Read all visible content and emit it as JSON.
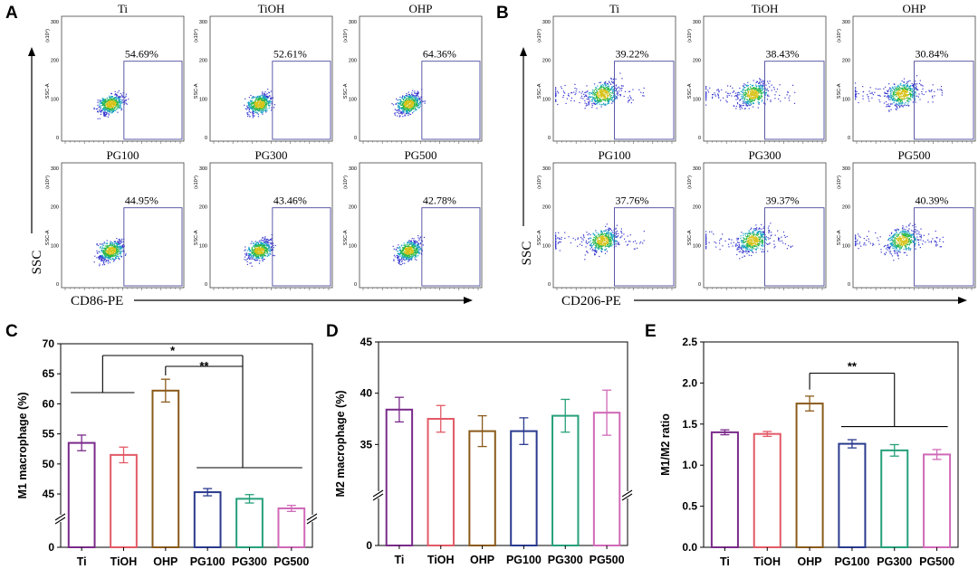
{
  "panel_labels": [
    "A",
    "B",
    "C",
    "D",
    "E"
  ],
  "flow_A": {
    "groups": [
      "Ti",
      "TiOH",
      "OHP",
      "PG100",
      "PG300",
      "PG500"
    ],
    "percents": [
      "54.69%",
      "52.61%",
      "64.36%",
      "44.95%",
      "43.46%",
      "42.78%"
    ],
    "x_axis": "CD86-PE",
    "y_axis": "SSC",
    "y_small_label": "SSC-A",
    "y_unit": "(x10⁴)",
    "y_ticks": [
      "0",
      "100",
      "200",
      "300"
    ]
  },
  "flow_B": {
    "groups": [
      "Ti",
      "TiOH",
      "OHP",
      "PG100",
      "PG300",
      "PG500"
    ],
    "percents": [
      "39.22%",
      "38.43%",
      "30.84%",
      "37.76%",
      "39.37%",
      "40.39%"
    ],
    "x_axis": "CD206-PE",
    "y_axis": "SSC",
    "y_small_label": "SSC-A",
    "y_unit": "(x10⁴)",
    "y_ticks": [
      "0",
      "100",
      "200",
      "300"
    ]
  },
  "chart_data": [
    {
      "id": "C",
      "type": "bar",
      "categories": [
        "Ti",
        "TiOH",
        "OHP",
        "PG100",
        "PG300",
        "PG500"
      ],
      "values": [
        53.5,
        51.5,
        62.2,
        45.3,
        44.2,
        42.6
      ],
      "errors": [
        1.3,
        1.3,
        1.9,
        0.6,
        0.7,
        0.5
      ],
      "colors": [
        "#7a2a8a",
        "#e25a66",
        "#8a5a1a",
        "#2a3a8e",
        "#26a07a",
        "#d069b8"
      ],
      "ylabel": "M1 macrophage (%)",
      "ylim": [
        0,
        70
      ],
      "axis_break": [
        0,
        42
      ],
      "y_ticks": [
        "0",
        "45",
        "50",
        "55",
        "60",
        "65",
        "70"
      ],
      "significance": [
        "*",
        "**"
      ]
    },
    {
      "id": "D",
      "type": "bar",
      "categories": [
        "Ti",
        "TiOH",
        "OHP",
        "PG100",
        "PG300",
        "PG500"
      ],
      "values": [
        38.4,
        37.5,
        36.3,
        36.3,
        37.8,
        38.1
      ],
      "errors": [
        1.2,
        1.3,
        1.5,
        1.3,
        1.6,
        2.2
      ],
      "colors": [
        "#7a2a8a",
        "#e25a66",
        "#8a5a1a",
        "#2a3a8e",
        "#26a07a",
        "#d069b8"
      ],
      "ylabel": "M2 macrophage (%)",
      "ylim": [
        0,
        45
      ],
      "axis_break": [
        0,
        30
      ],
      "y_ticks": [
        "0",
        "35",
        "40",
        "45"
      ]
    },
    {
      "id": "E",
      "type": "bar",
      "categories": [
        "Ti",
        "TiOH",
        "OHP",
        "PG100",
        "PG300",
        "PG500"
      ],
      "values": [
        1.4,
        1.38,
        1.75,
        1.26,
        1.18,
        1.13
      ],
      "errors": [
        0.03,
        0.03,
        0.09,
        0.05,
        0.07,
        0.06
      ],
      "colors": [
        "#7a2a8a",
        "#e25a66",
        "#8a5a1a",
        "#2a3a8e",
        "#26a07a",
        "#d069b8"
      ],
      "ylabel": "M1/M2 ratio",
      "ylim": [
        0,
        2.5
      ],
      "y_ticks": [
        "0.0",
        "0.5",
        "1.0",
        "1.5",
        "2.0",
        "2.5"
      ],
      "significance": [
        "**"
      ]
    }
  ]
}
